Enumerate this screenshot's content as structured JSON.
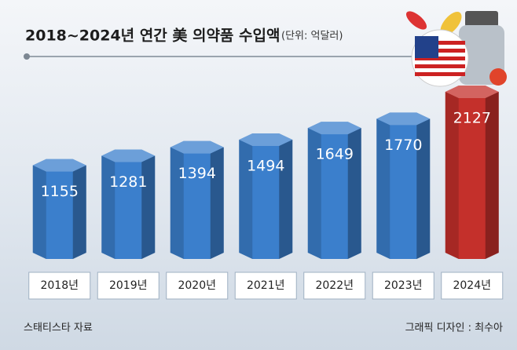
{
  "chart_data": {
    "type": "bar",
    "title": "2018~2024년 연간 美 의약품 수입액",
    "subtitle": "(단위: 억달러)",
    "categories": [
      "2018년",
      "2019년",
      "2020년",
      "2021년",
      "2022년",
      "2023년",
      "2024년"
    ],
    "values": [
      1155,
      1281,
      1394,
      1494,
      1649,
      1770,
      2127
    ],
    "colors": [
      "#3b7fcc",
      "#3b7fcc",
      "#3b7fcc",
      "#3b7fcc",
      "#3b7fcc",
      "#3b7fcc",
      "#c4302b"
    ],
    "source": "스태티스타 자료",
    "credit": "그래픽 디자인 : 최수아"
  }
}
